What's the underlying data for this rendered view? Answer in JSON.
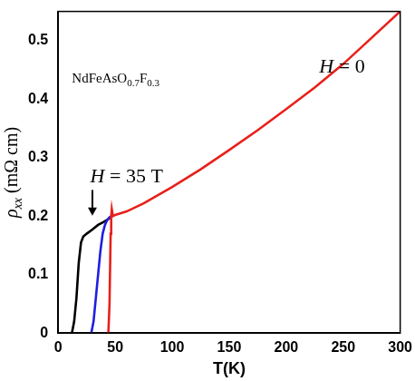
{
  "chart_data": {
    "type": "line",
    "x_label": "T(K)",
    "y_label": "ρxx (mΩ cm)",
    "annotations": [
      "NdFeAsO0.7F0.3",
      "H = 0",
      "H = 35 T"
    ],
    "xlim": [
      0,
      300
    ],
    "xticks": [
      0,
      50,
      100,
      150,
      200,
      250,
      300
    ],
    "ylim": [
      0,
      0.55
    ],
    "yticks": [
      0,
      0.1,
      0.2,
      0.3,
      0.4,
      0.5
    ],
    "grid": false,
    "series": [
      {
        "color": "#e8201a",
        "x": [
          44,
          45,
          46,
          46.5,
          47,
          48,
          50,
          60,
          75,
          100,
          125,
          150,
          175,
          200,
          225,
          250,
          275,
          300
        ],
        "values": [
          0,
          0.05,
          0.17,
          0.2,
          0.212,
          0.2,
          0.202,
          0.208,
          0.222,
          0.25,
          0.28,
          0.313,
          0.347,
          0.383,
          0.42,
          0.46,
          0.505,
          0.55
        ]
      },
      {
        "color": "#1f1fe0",
        "x": [
          29,
          31,
          33,
          35,
          37,
          39,
          41,
          43,
          45,
          47
        ],
        "values": [
          0,
          0.02,
          0.06,
          0.1,
          0.14,
          0.17,
          0.185,
          0.193,
          0.198,
          0.2
        ]
      },
      {
        "color": "#000000",
        "x": [
          12,
          14,
          16,
          18,
          20,
          22,
          25,
          30,
          35,
          40,
          44,
          47
        ],
        "values": [
          0,
          0.02,
          0.06,
          0.12,
          0.155,
          0.165,
          0.17,
          0.177,
          0.185,
          0.19,
          0.195,
          0.2
        ]
      }
    ]
  }
}
